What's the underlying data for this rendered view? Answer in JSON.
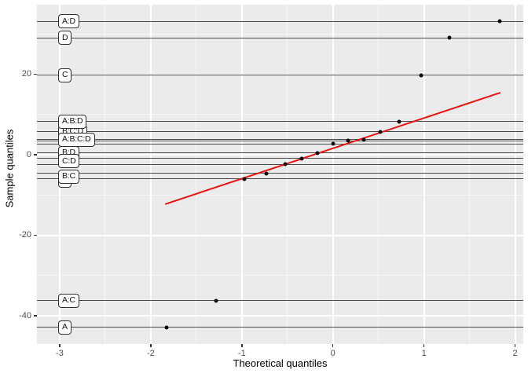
{
  "chart_data": {
    "type": "scatter",
    "subtype": "qq-plot-of-factorial-effects",
    "title": "",
    "xlabel": "Theoretical quantiles",
    "ylabel": "Sample quantiles",
    "xlim": [
      -3.25,
      2.09
    ],
    "ylim": [
      -47.0,
      37.3
    ],
    "x_major_ticks": [
      -3,
      -2,
      -1,
      0,
      1,
      2
    ],
    "x_minor_ticks": [
      -2.5,
      -1.5,
      -0.5,
      0.5,
      1.5
    ],
    "y_major_ticks": [
      20,
      0,
      -20,
      -40
    ],
    "y_minor_ticks": [
      30,
      10,
      -10,
      -30
    ],
    "grid": true,
    "legend": "none",
    "colors": {
      "panel_bg": "#ebebeb",
      "grid_major": "#ffffff",
      "grid_minor": "#f5f5f5",
      "effect_line": "#4a4a4a",
      "point": "#0a0a0a",
      "ref_line": "#ee1111",
      "tick_label": "#4d4d4d",
      "axis_title": "#000000"
    },
    "ref_line": {
      "x1": -1.84,
      "y1": -12.3,
      "x2": 1.84,
      "y2": 15.4
    },
    "points": [
      {
        "x": -1.83,
        "y": -42.9,
        "effect": "A"
      },
      {
        "x": -1.28,
        "y": -36.2,
        "effect": "A:C"
      },
      {
        "x": -0.97,
        "y": -6.0,
        "effect": "B"
      },
      {
        "x": -0.73,
        "y": -4.6,
        "effect": "B:C"
      },
      {
        "x": -0.52,
        "y": -2.4,
        "effect": "C:D"
      },
      {
        "x": -0.34,
        "y": -0.9,
        "effect": ""
      },
      {
        "x": -0.17,
        "y": 0.5,
        "effect": "B:D"
      },
      {
        "x": 0.0,
        "y": 2.7,
        "effect": ""
      },
      {
        "x": 0.17,
        "y": 3.5,
        "effect": ""
      },
      {
        "x": 0.34,
        "y": 3.8,
        "effect": "A:B:C:D"
      },
      {
        "x": 0.52,
        "y": 5.7,
        "effect": "B:C:D"
      },
      {
        "x": 0.73,
        "y": 8.3,
        "effect": "A:B:D"
      },
      {
        "x": 0.97,
        "y": 19.8,
        "effect": "C"
      },
      {
        "x": 1.28,
        "y": 29.1,
        "effect": "D"
      },
      {
        "x": 1.83,
        "y": 33.2,
        "effect": "A:D"
      }
    ],
    "effect_lines": [
      {
        "label": "A:D",
        "value": 33.2,
        "dy": 0,
        "layer": 6
      },
      {
        "label": "D",
        "value": 29.1,
        "dy": 0,
        "layer": 6
      },
      {
        "label": "C",
        "value": 19.8,
        "dy": 0,
        "layer": 6
      },
      {
        "label": "A:B:D",
        "value": 8.3,
        "dy": 0,
        "layer": 6
      },
      {
        "label": "B:C:D",
        "value": 5.7,
        "dy": 0,
        "layer": 5
      },
      {
        "label": "A:B:C:D",
        "value": 3.8,
        "dy": 0,
        "layer": 7
      },
      {
        "label": "",
        "value": 3.5,
        "dy": 0,
        "layer": 1
      },
      {
        "label": "",
        "value": 2.7,
        "dy": 0,
        "layer": 1
      },
      {
        "label": "B:D",
        "value": 0.5,
        "dy": 0,
        "layer": 4
      },
      {
        "label": "",
        "value": -0.9,
        "dy": 0,
        "layer": 1
      },
      {
        "label": "C:D",
        "value": -2.4,
        "dy": -4,
        "layer": 7
      },
      {
        "label": "B:C",
        "value": -4.6,
        "dy": 4,
        "layer": 7
      },
      {
        "label": "B",
        "value": -6.0,
        "dy": 2,
        "layer": 4
      },
      {
        "label": "A:C",
        "value": -36.2,
        "dy": 0,
        "layer": 6
      },
      {
        "label": "A",
        "value": -42.9,
        "dy": 0,
        "layer": 6
      }
    ]
  }
}
